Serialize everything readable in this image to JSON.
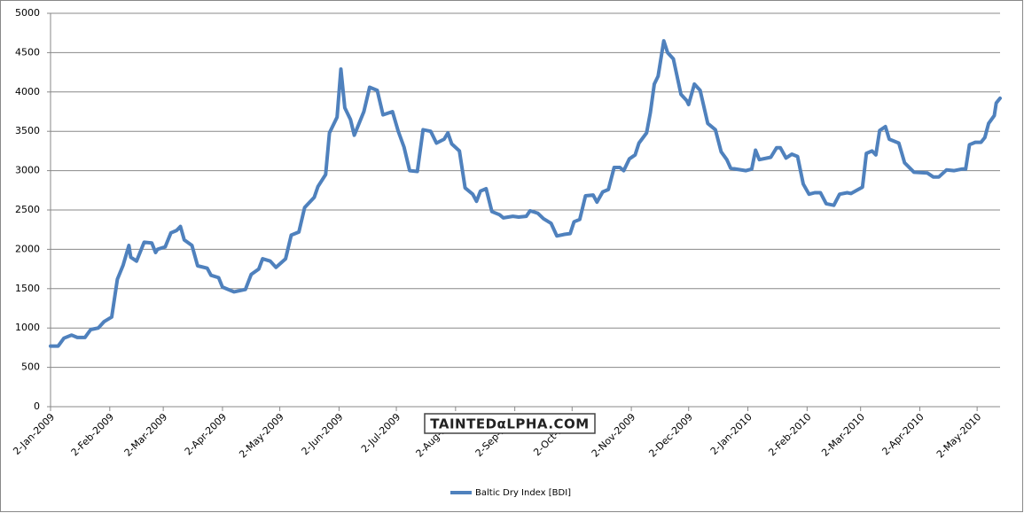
{
  "chart_data": {
    "type": "line",
    "x": [
      "2009-01-02",
      "2009-01-06",
      "2009-01-09",
      "2009-01-13",
      "2009-01-16",
      "2009-01-20",
      "2009-01-23",
      "2009-01-27",
      "2009-01-30",
      "2009-02-03",
      "2009-02-06",
      "2009-02-09",
      "2009-02-12",
      "2009-02-13",
      "2009-02-16",
      "2009-02-20",
      "2009-02-24",
      "2009-02-26",
      "2009-02-27",
      "2009-03-03",
      "2009-03-06",
      "2009-03-09",
      "2009-03-11",
      "2009-03-13",
      "2009-03-17",
      "2009-03-20",
      "2009-03-25",
      "2009-03-27",
      "2009-03-31",
      "2009-04-02",
      "2009-04-08",
      "2009-04-14",
      "2009-04-17",
      "2009-04-21",
      "2009-04-23",
      "2009-04-27",
      "2009-04-30",
      "2009-05-05",
      "2009-05-08",
      "2009-05-12",
      "2009-05-15",
      "2009-05-20",
      "2009-05-22",
      "2009-05-26",
      "2009-05-28",
      "2009-06-01",
      "2009-06-03",
      "2009-06-05",
      "2009-06-08",
      "2009-06-10",
      "2009-06-15",
      "2009-06-18",
      "2009-06-22",
      "2009-06-25",
      "2009-06-30",
      "2009-07-03",
      "2009-07-06",
      "2009-07-09",
      "2009-07-13",
      "2009-07-16",
      "2009-07-20",
      "2009-07-23",
      "2009-07-27",
      "2009-07-29",
      "2009-07-31",
      "2009-08-04",
      "2009-08-07",
      "2009-08-11",
      "2009-08-13",
      "2009-08-15",
      "2009-08-18",
      "2009-08-21",
      "2009-08-25",
      "2009-08-27",
      "2009-09-01",
      "2009-09-04",
      "2009-09-08",
      "2009-09-10",
      "2009-09-14",
      "2009-09-17",
      "2009-09-21",
      "2009-09-24",
      "2009-09-28",
      "2009-10-01",
      "2009-10-03",
      "2009-10-06",
      "2009-10-09",
      "2009-10-13",
      "2009-10-15",
      "2009-10-18",
      "2009-10-21",
      "2009-10-24",
      "2009-10-27",
      "2009-10-29",
      "2009-11-01",
      "2009-11-04",
      "2009-11-06",
      "2009-11-10",
      "2009-11-12",
      "2009-11-14",
      "2009-11-16",
      "2009-11-19",
      "2009-11-21",
      "2009-11-24",
      "2009-11-28",
      "2009-12-01",
      "2009-12-02",
      "2009-12-05",
      "2009-12-08",
      "2009-12-12",
      "2009-12-16",
      "2009-12-19",
      "2009-12-22",
      "2009-12-24",
      "2010-01-01",
      "2010-01-04",
      "2010-01-06",
      "2010-01-08",
      "2010-01-14",
      "2010-01-17",
      "2010-01-19",
      "2010-01-22",
      "2010-01-25",
      "2010-01-28",
      "2010-01-31",
      "2010-02-03",
      "2010-02-06",
      "2010-02-09",
      "2010-02-12",
      "2010-02-16",
      "2010-02-19",
      "2010-02-23",
      "2010-02-25",
      "2010-02-28",
      "2010-03-03",
      "2010-03-05",
      "2010-03-08",
      "2010-03-10",
      "2010-03-12",
      "2010-03-15",
      "2010-03-17",
      "2010-03-22",
      "2010-03-25",
      "2010-03-30",
      "2010-04-06",
      "2010-04-09",
      "2010-04-12",
      "2010-04-16",
      "2010-04-20",
      "2010-04-24",
      "2010-04-26",
      "2010-04-28",
      "2010-05-01",
      "2010-05-04",
      "2010-05-06",
      "2010-05-08",
      "2010-05-11",
      "2010-05-12",
      "2010-05-14"
    ],
    "series": [
      {
        "name": "Baltic Dry Index [BDI]",
        "color": "#4f81bd",
        "values": [
          770,
          770,
          870,
          910,
          880,
          880,
          980,
          1000,
          1080,
          1140,
          1620,
          1800,
          2050,
          1900,
          1850,
          2090,
          2080,
          1960,
          2000,
          2030,
          2210,
          2240,
          2290,
          2120,
          2050,
          1790,
          1760,
          1670,
          1640,
          1520,
          1460,
          1490,
          1680,
          1750,
          1880,
          1850,
          1770,
          1880,
          2180,
          2220,
          2530,
          2660,
          2800,
          2950,
          3480,
          3680,
          4290,
          3800,
          3650,
          3450,
          3750,
          4060,
          4020,
          3710,
          3750,
          3500,
          3300,
          3000,
          2990,
          3520,
          3500,
          3350,
          3400,
          3480,
          3340,
          3250,
          2780,
          2700,
          2610,
          2740,
          2770,
          2480,
          2440,
          2400,
          2420,
          2410,
          2420,
          2490,
          2460,
          2390,
          2330,
          2170,
          2190,
          2200,
          2350,
          2380,
          2680,
          2690,
          2600,
          2730,
          2760,
          3040,
          3040,
          3000,
          3150,
          3200,
          3350,
          3480,
          3740,
          4100,
          4200,
          4650,
          4500,
          4420,
          3970,
          3890,
          3840,
          4100,
          4020,
          3600,
          3520,
          3240,
          3140,
          3030,
          3000,
          3020,
          3260,
          3140,
          3170,
          3290,
          3290,
          3160,
          3210,
          3180,
          2830,
          2700,
          2720,
          2720,
          2580,
          2560,
          2700,
          2720,
          2710,
          2750,
          2790,
          3220,
          3250,
          3200,
          3510,
          3560,
          3400,
          3350,
          3100,
          2980,
          2970,
          2920,
          2920,
          3010,
          3000,
          3020,
          3020,
          3330,
          3360,
          3360,
          3420,
          3600,
          3700,
          3860,
          3920
        ]
      }
    ],
    "xlim": [
      "2009-01-02",
      "2010-05-14"
    ],
    "xticks": [
      {
        "value": "2009-01-02",
        "label": "2-Jan-2009"
      },
      {
        "value": "2009-02-02",
        "label": "2-Feb-2009"
      },
      {
        "value": "2009-03-02",
        "label": "2-Mar-2009"
      },
      {
        "value": "2009-04-02",
        "label": "2-Apr-2009"
      },
      {
        "value": "2009-05-02",
        "label": "2-May-2009"
      },
      {
        "value": "2009-06-02",
        "label": "2-Jun-2009"
      },
      {
        "value": "2009-07-02",
        "label": "2-Jul-2009"
      },
      {
        "value": "2009-08-02",
        "label": "2-Aug-2009"
      },
      {
        "value": "2009-09-02",
        "label": "2-Sep-2009"
      },
      {
        "value": "2009-10-02",
        "label": "2-Oct-2009"
      },
      {
        "value": "2009-11-02",
        "label": "2-Nov-2009"
      },
      {
        "value": "2009-12-02",
        "label": "2-Dec-2009"
      },
      {
        "value": "2010-01-02",
        "label": "2-Jan-2010"
      },
      {
        "value": "2010-02-02",
        "label": "2-Feb-2010"
      },
      {
        "value": "2010-03-02",
        "label": "2-Mar-2010"
      },
      {
        "value": "2010-04-02",
        "label": "2-Apr-2010"
      },
      {
        "value": "2010-05-02",
        "label": "2-May-2010"
      }
    ],
    "ylim": [
      0,
      5000
    ],
    "yticks": [
      0,
      500,
      1000,
      1500,
      2000,
      2500,
      3000,
      3500,
      4000,
      4500,
      5000
    ],
    "grid": true,
    "legend": "bottom",
    "watermark": "TAINTEDαLPHA.COM"
  }
}
